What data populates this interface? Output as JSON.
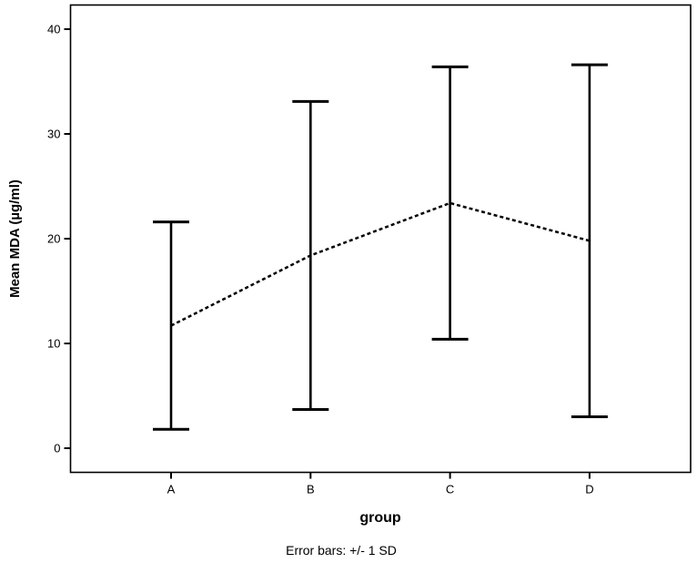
{
  "figure": {
    "background_color": "#ffffff",
    "foreground_color": "#000000"
  },
  "chart_data": {
    "type": "line",
    "subtype": "means-with-error-bars",
    "title": "",
    "xlabel": "group",
    "ylabel": "Mean MDA (µg/ml)",
    "caption": "Error bars: +/- 1 SD",
    "categories": [
      "A",
      "B",
      "C",
      "D"
    ],
    "series": [
      {
        "name": "Mean MDA",
        "means": [
          11.7,
          18.4,
          23.4,
          19.8
        ],
        "sd": [
          9.9,
          14.7,
          13.0,
          16.8
        ],
        "upper": [
          21.6,
          33.1,
          36.4,
          36.6
        ],
        "lower": [
          1.8,
          3.7,
          10.4,
          3.0
        ]
      }
    ],
    "yticks": [
      0,
      10,
      20,
      30,
      40
    ],
    "ylim": [
      -2.3,
      42.3
    ],
    "grid": false,
    "legend": false,
    "line_style": "dotted",
    "line_color": "#000000",
    "error_bar_definition": "+/- 1 SD"
  }
}
